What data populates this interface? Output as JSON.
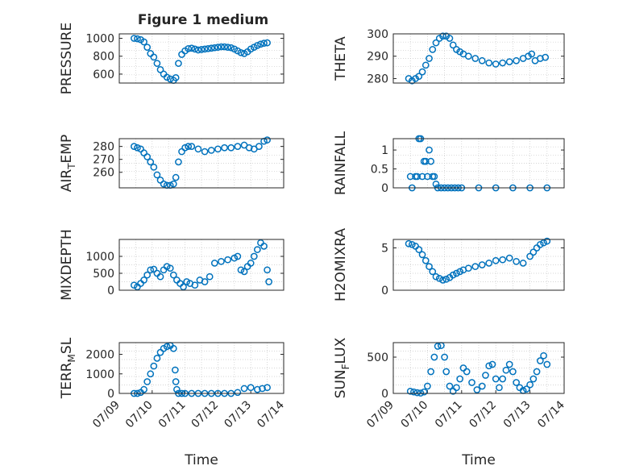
{
  "figure": {
    "title": "Figure 1 medium"
  },
  "chart_data": [
    {
      "type": "scatter",
      "ylabel": "PRESSURE",
      "ylabel_sub": "",
      "ylim": [
        500,
        1050
      ],
      "yticks": [
        600,
        800,
        1000
      ],
      "xlim": [
        0,
        5
      ],
      "xticks": [],
      "grid": true,
      "x": [
        0.45,
        0.55,
        0.65,
        0.75,
        0.85,
        0.95,
        1.05,
        1.15,
        1.25,
        1.35,
        1.45,
        1.55,
        1.65,
        1.72,
        1.8,
        1.9,
        2.0,
        2.1,
        2.2,
        2.3,
        2.4,
        2.5,
        2.6,
        2.7,
        2.8,
        2.9,
        3.0,
        3.1,
        3.2,
        3.3,
        3.4,
        3.5,
        3.6,
        3.7,
        3.8,
        3.9,
        4.0,
        4.1,
        4.2,
        4.3,
        4.4,
        4.5
      ],
      "y": [
        1000,
        995,
        985,
        960,
        900,
        830,
        790,
        720,
        650,
        600,
        565,
        545,
        530,
        560,
        720,
        820,
        860,
        885,
        890,
        880,
        870,
        875,
        880,
        885,
        890,
        895,
        900,
        905,
        905,
        900,
        895,
        880,
        860,
        840,
        830,
        850,
        880,
        900,
        920,
        935,
        945,
        950
      ]
    },
    {
      "type": "scatter",
      "ylabel": "THETA",
      "ylabel_sub": "",
      "ylim": [
        278,
        300
      ],
      "yticks": [
        280,
        290,
        300
      ],
      "xlim": [
        0,
        5
      ],
      "xticks": [],
      "grid": true,
      "x": [
        0.45,
        0.55,
        0.65,
        0.75,
        0.85,
        0.95,
        1.05,
        1.15,
        1.25,
        1.35,
        1.45,
        1.55,
        1.65,
        1.75,
        1.85,
        1.95,
        2.05,
        2.2,
        2.4,
        2.6,
        2.8,
        3.0,
        3.2,
        3.4,
        3.6,
        3.8,
        3.95,
        4.05,
        4.15,
        4.3,
        4.45
      ],
      "y": [
        280,
        279,
        280,
        281,
        283,
        286,
        289,
        293,
        296,
        298,
        299,
        299,
        298,
        295,
        293,
        292,
        291,
        290,
        289,
        288,
        287,
        286.5,
        287,
        287.5,
        288,
        289,
        290,
        291,
        288,
        289,
        289.5
      ]
    },
    {
      "type": "scatter",
      "ylabel": "AIR",
      "ylabel_sub": "T",
      "ylabel_suffix": "EMP",
      "ylim": [
        248,
        286
      ],
      "yticks": [
        260,
        270,
        280
      ],
      "xlim": [
        0,
        5
      ],
      "xticks": [],
      "grid": true,
      "x": [
        0.45,
        0.55,
        0.65,
        0.75,
        0.85,
        0.95,
        1.05,
        1.15,
        1.25,
        1.35,
        1.45,
        1.55,
        1.65,
        1.72,
        1.8,
        1.9,
        2.0,
        2.1,
        2.2,
        2.4,
        2.6,
        2.8,
        3.0,
        3.2,
        3.4,
        3.6,
        3.8,
        3.95,
        4.1,
        4.25,
        4.4,
        4.5
      ],
      "y": [
        280,
        279,
        278,
        275,
        272,
        268,
        264,
        258,
        254,
        251,
        250,
        250,
        251,
        256,
        268,
        276,
        279,
        280,
        280,
        278,
        276,
        277,
        278,
        279,
        279,
        280,
        281,
        279,
        278,
        280,
        284,
        285
      ]
    },
    {
      "type": "scatter",
      "ylabel": "RAINFALL",
      "ylabel_sub": "",
      "ylim": [
        0,
        1.3
      ],
      "yticks": [
        0,
        0.5,
        1
      ],
      "xlim": [
        0,
        5
      ],
      "xticks": [],
      "grid": true,
      "x": [
        0.5,
        0.55,
        0.65,
        0.7,
        0.75,
        0.8,
        0.85,
        0.9,
        0.95,
        1.0,
        1.05,
        1.1,
        1.15,
        1.2,
        1.25,
        1.3,
        1.4,
        1.5,
        1.6,
        1.7,
        1.8,
        1.9,
        2.0,
        2.5,
        3.0,
        3.5,
        4.0,
        4.5
      ],
      "y": [
        0.3,
        0,
        0.3,
        0.3,
        1.3,
        1.3,
        0.3,
        0.7,
        0.7,
        0.3,
        1.0,
        0.7,
        0.3,
        0.3,
        0.1,
        0,
        0,
        0,
        0,
        0,
        0,
        0,
        0,
        0,
        0,
        0,
        0,
        0
      ]
    },
    {
      "type": "scatter",
      "ylabel": "MIXDEPTH",
      "ylabel_sub": "",
      "ylim": [
        0,
        1500
      ],
      "yticks": [
        0,
        500,
        1000
      ],
      "xlim": [
        0,
        5
      ],
      "xticks": [],
      "grid": true,
      "x": [
        0.45,
        0.55,
        0.65,
        0.75,
        0.85,
        0.95,
        1.05,
        1.15,
        1.25,
        1.35,
        1.45,
        1.55,
        1.65,
        1.75,
        1.85,
        1.95,
        2.05,
        2.15,
        2.3,
        2.45,
        2.6,
        2.75,
        2.9,
        3.1,
        3.3,
        3.5,
        3.6,
        3.7,
        3.8,
        3.9,
        4.0,
        4.1,
        4.2,
        4.3,
        4.4,
        4.5,
        4.55
      ],
      "y": [
        150,
        100,
        200,
        300,
        450,
        600,
        620,
        500,
        400,
        600,
        700,
        650,
        450,
        300,
        200,
        100,
        250,
        200,
        150,
        300,
        250,
        400,
        800,
        850,
        900,
        950,
        1000,
        600,
        550,
        700,
        800,
        1000,
        1200,
        1400,
        1300,
        600,
        250
      ]
    },
    {
      "type": "scatter",
      "ylabel": "H2OMIXRA",
      "ylabel_sub": "",
      "ylim": [
        0,
        6
      ],
      "yticks": [
        0,
        5
      ],
      "xlim": [
        0,
        5
      ],
      "xticks": [],
      "grid": true,
      "x": [
        0.45,
        0.55,
        0.65,
        0.75,
        0.85,
        0.95,
        1.05,
        1.15,
        1.25,
        1.35,
        1.45,
        1.55,
        1.65,
        1.75,
        1.85,
        1.95,
        2.05,
        2.2,
        2.4,
        2.6,
        2.8,
        3.0,
        3.2,
        3.4,
        3.6,
        3.8,
        4.0,
        4.1,
        4.2,
        4.3,
        4.4,
        4.5
      ],
      "y": [
        5.5,
        5.4,
        5.2,
        4.8,
        4.2,
        3.5,
        2.8,
        2.2,
        1.6,
        1.4,
        1.2,
        1.3,
        1.5,
        1.8,
        2.0,
        2.2,
        2.4,
        2.6,
        2.8,
        3.0,
        3.2,
        3.5,
        3.6,
        3.8,
        3.4,
        3.2,
        4.0,
        4.5,
        5.0,
        5.4,
        5.6,
        5.8
      ]
    },
    {
      "type": "scatter",
      "ylabel": "TERR",
      "ylabel_sub": "M",
      "ylabel_suffix": "SL",
      "ylim": [
        0,
        2600
      ],
      "yticks": [
        0,
        1000,
        2000
      ],
      "xlim": [
        0,
        5
      ],
      "xticks": [
        "07/09",
        "07/10",
        "07/11",
        "07/12",
        "07/13",
        "07/14"
      ],
      "xlabel": "Time",
      "grid": true,
      "x": [
        0.45,
        0.55,
        0.65,
        0.75,
        0.85,
        0.95,
        1.05,
        1.15,
        1.25,
        1.35,
        1.45,
        1.55,
        1.65,
        1.7,
        1.72,
        1.75,
        1.8,
        1.9,
        2.0,
        2.2,
        2.4,
        2.6,
        2.8,
        3.0,
        3.2,
        3.4,
        3.6,
        3.8,
        4.0,
        4.2,
        4.35,
        4.5
      ],
      "y": [
        0,
        0,
        50,
        200,
        600,
        1000,
        1400,
        1800,
        2100,
        2300,
        2400,
        2450,
        2300,
        1200,
        600,
        200,
        0,
        0,
        0,
        0,
        0,
        0,
        0,
        0,
        0,
        0,
        50,
        250,
        300,
        200,
        250,
        300
      ]
    },
    {
      "type": "scatter",
      "ylabel": "SUN",
      "ylabel_sub": "F",
      "ylabel_suffix": "LUX",
      "ylim": [
        0,
        700
      ],
      "yticks": [
        0,
        500
      ],
      "xlim": [
        0,
        5
      ],
      "xticks": [
        "07/09",
        "07/10",
        "07/11",
        "07/12",
        "07/13",
        "07/14"
      ],
      "xlabel": "Time",
      "grid": true,
      "x": [
        0.5,
        0.6,
        0.7,
        0.8,
        0.9,
        1.0,
        1.1,
        1.2,
        1.3,
        1.4,
        1.5,
        1.55,
        1.65,
        1.75,
        1.85,
        1.95,
        2.05,
        2.15,
        2.3,
        2.45,
        2.6,
        2.7,
        2.8,
        2.9,
        3.0,
        3.1,
        3.2,
        3.3,
        3.4,
        3.5,
        3.6,
        3.7,
        3.8,
        3.9,
        4.0,
        4.1,
        4.2,
        4.3,
        4.4,
        4.5
      ],
      "y": [
        30,
        20,
        10,
        5,
        20,
        100,
        300,
        500,
        650,
        660,
        500,
        300,
        100,
        30,
        80,
        200,
        350,
        300,
        150,
        50,
        100,
        250,
        380,
        400,
        200,
        80,
        200,
        320,
        400,
        300,
        150,
        80,
        40,
        60,
        120,
        200,
        300,
        450,
        520,
        400
      ]
    }
  ]
}
